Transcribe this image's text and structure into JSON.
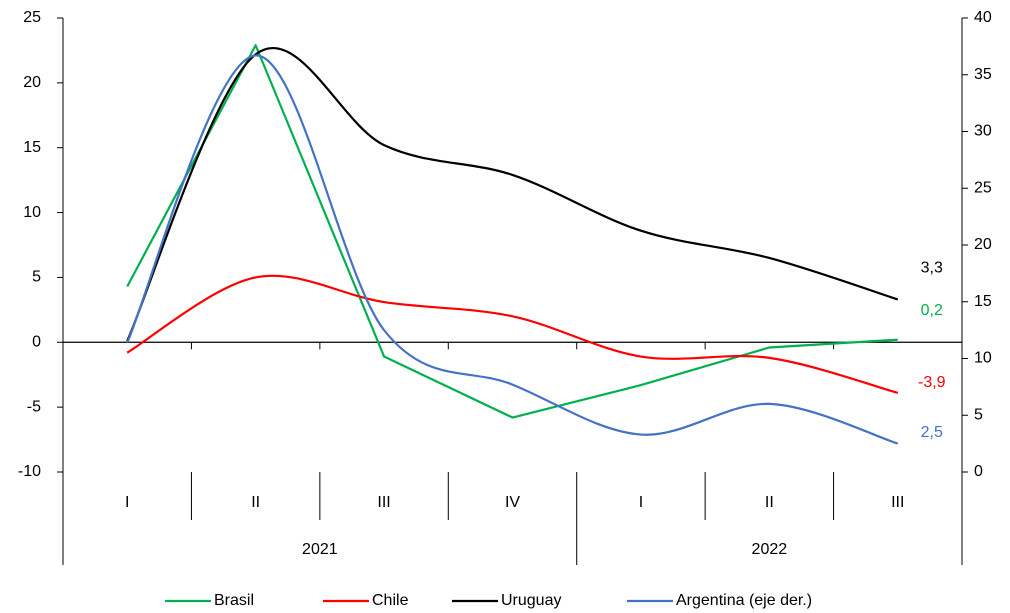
{
  "chart_data": {
    "type": "line",
    "categories": [
      "I",
      "II",
      "III",
      "IV",
      "I",
      "II",
      "III"
    ],
    "groups": [
      {
        "label": "2021",
        "span": 4
      },
      {
        "label": "2022",
        "span": 3
      }
    ],
    "series": [
      {
        "name": "Brasil",
        "color": "#00b050",
        "smooth": false,
        "values": [
          4.3,
          22.9,
          -1.1,
          -5.8,
          -3.3,
          -0.4,
          0.2
        ],
        "value_labels": [
          null,
          null,
          null,
          null,
          null,
          null,
          "0,2"
        ]
      },
      {
        "name": "Chile",
        "color": "#ff0000",
        "smooth": true,
        "values": [
          -0.8,
          5.0,
          3.1,
          2.0,
          -1.1,
          -1.2,
          -3.9
        ],
        "value_labels": [
          null,
          null,
          null,
          null,
          null,
          null,
          "-3,9"
        ]
      },
      {
        "name": "Uruguay",
        "color": "#000000",
        "smooth": true,
        "values": [
          0.1,
          22.2,
          15.2,
          12.9,
          8.6,
          6.5,
          3.3
        ],
        "value_labels": [
          null,
          null,
          null,
          null,
          null,
          null,
          "3,3"
        ]
      },
      {
        "name": "Argentina (eje der.)",
        "color": "#4472c4",
        "smooth": true,
        "axis": "y2",
        "values": [
          11.4,
          36.7,
          12.5,
          7.7,
          3.3,
          6.0,
          2.5
        ],
        "value_labels": [
          null,
          null,
          null,
          null,
          null,
          null,
          "2,5"
        ]
      }
    ],
    "ylim": [
      -10,
      25
    ],
    "yticks": [
      -10,
      -5,
      0,
      5,
      10,
      15,
      20,
      25
    ],
    "y2lim": [
      0,
      40
    ],
    "y2ticks": [
      0,
      5,
      10,
      15,
      20,
      25,
      30,
      35,
      40
    ],
    "legend": "bottom"
  }
}
